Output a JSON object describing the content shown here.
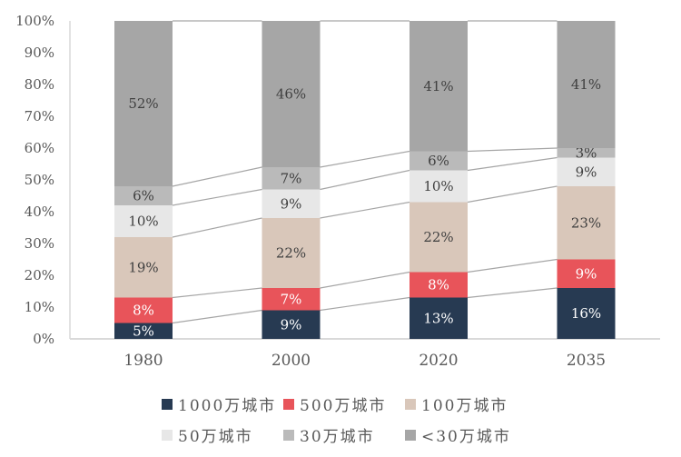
{
  "chart_data": {
    "type": "bar",
    "variant": "stacked-100-column",
    "title": "",
    "xlabel": "",
    "ylabel": "",
    "categories": [
      "1980",
      "2000",
      "2020",
      "2035"
    ],
    "series": [
      {
        "name": "1000万城市",
        "color": "#273a52",
        "label_color": "#ffffff",
        "values": [
          5,
          9,
          13,
          16
        ]
      },
      {
        "name": "500万城市",
        "color": "#e8545a",
        "label_color": "#ffffff",
        "values": [
          8,
          7,
          8,
          9
        ]
      },
      {
        "name": "100万城市",
        "color": "#d9c7ba",
        "label_color": "#404040",
        "values": [
          19,
          22,
          22,
          23
        ]
      },
      {
        "name": "50万城市",
        "color": "#e7e7e7",
        "label_color": "#404040",
        "values": [
          10,
          9,
          10,
          9
        ]
      },
      {
        "name": "30万城市",
        "color": "#bababa",
        "label_color": "#404040",
        "values": [
          6,
          7,
          6,
          3
        ]
      },
      {
        "name": "<30万城市",
        "color": "#a6a6a6",
        "label_color": "#404040",
        "values": [
          52,
          46,
          41,
          41
        ]
      }
    ],
    "value_suffix": "%",
    "ylim": [
      0,
      100
    ],
    "y_ticks": [
      "0%",
      "10%",
      "20%",
      "30%",
      "40%",
      "50%",
      "60%",
      "70%",
      "80%",
      "90%",
      "100%"
    ],
    "grid": false,
    "series_lines": true,
    "legend_position": "bottom",
    "colors": {
      "axis_line": "#d9d9d9",
      "series_line": "#a6a6a6",
      "tick_label": "#595959",
      "legend_label": "#595959",
      "background": "#ffffff"
    }
  }
}
